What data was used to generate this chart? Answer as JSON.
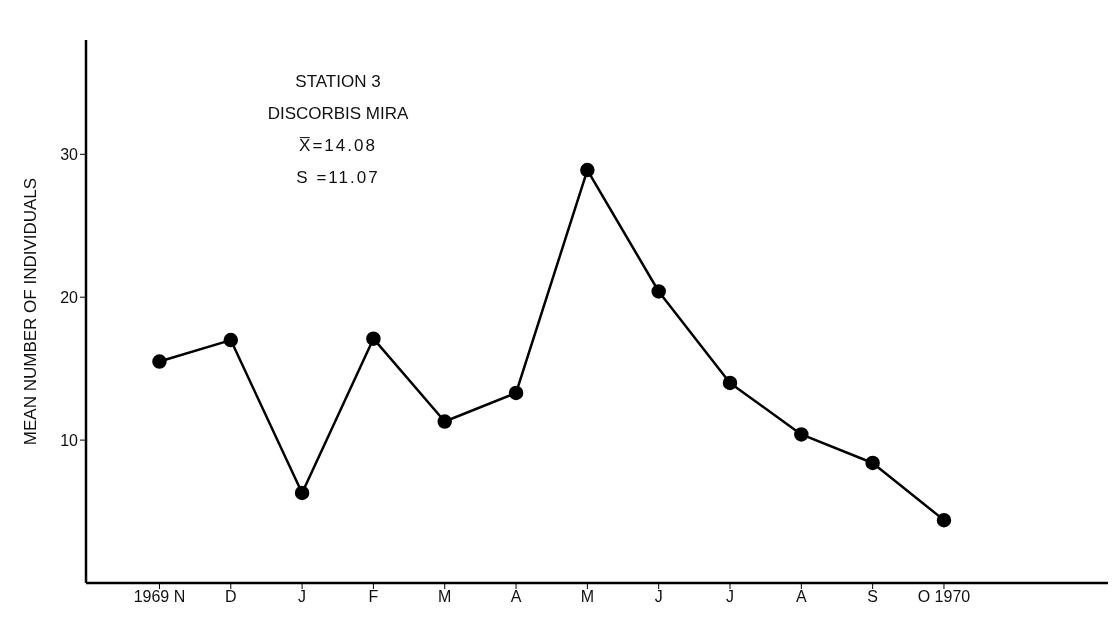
{
  "chart_data": {
    "type": "line",
    "title": "STATION 3",
    "subtitle": "DISCORBIS MIRA",
    "ylabel": "MEAN NUMBER OF INDIVIDUALS",
    "annotations": [
      "X̅=14.08",
      "S =11.07"
    ],
    "categories": [
      "1969 N",
      "D",
      "J",
      "F",
      "M",
      "A",
      "M",
      "J",
      "J",
      "A",
      "S",
      "O 1970"
    ],
    "series": [
      {
        "color": "#000000",
        "values": [
          15.5,
          17.0,
          6.3,
          17.1,
          11.3,
          13.3,
          28.9,
          20.4,
          14.0,
          10.4,
          8.4,
          4.4
        ]
      }
    ],
    "ylim": [
      0,
      38
    ],
    "yticks": [
      10,
      20,
      30
    ],
    "grid": false,
    "legend": false,
    "marker": "circle",
    "line_style": "solid"
  }
}
